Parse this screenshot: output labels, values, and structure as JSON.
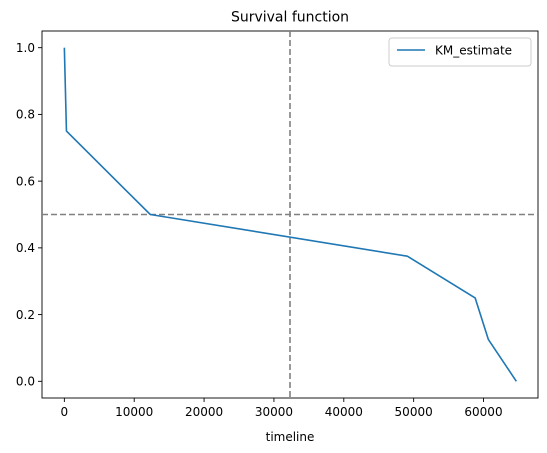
{
  "chart_data": {
    "type": "line",
    "title": "Survival function",
    "xlabel": "timeline",
    "ylabel": "",
    "xlim": [
      -3200,
      67800
    ],
    "ylim": [
      -0.05,
      1.05
    ],
    "xticks": [
      0,
      10000,
      20000,
      30000,
      40000,
      50000,
      60000
    ],
    "xtick_labels": [
      "0",
      "10000",
      "20000",
      "30000",
      "40000",
      "50000",
      "60000"
    ],
    "yticks": [
      0.0,
      0.2,
      0.4,
      0.6,
      0.8,
      1.0
    ],
    "ytick_labels": [
      "0.0",
      "0.2",
      "0.4",
      "0.6",
      "0.8",
      "1.0"
    ],
    "grid": false,
    "legend": "top-right",
    "series": [
      {
        "name": "KM_estimate",
        "color": "#1f77b4",
        "x": [
          0,
          300,
          12300,
          49100,
          58800,
          60700,
          64700
        ],
        "y": [
          1.0,
          0.75,
          0.5,
          0.375,
          0.25,
          0.125,
          0.0
        ]
      }
    ],
    "reference_lines": [
      {
        "orientation": "horizontal",
        "value": 0.5,
        "style": "dashed",
        "color": "#808080"
      },
      {
        "orientation": "vertical",
        "value": 32300,
        "style": "dashed",
        "color": "#808080"
      }
    ]
  }
}
